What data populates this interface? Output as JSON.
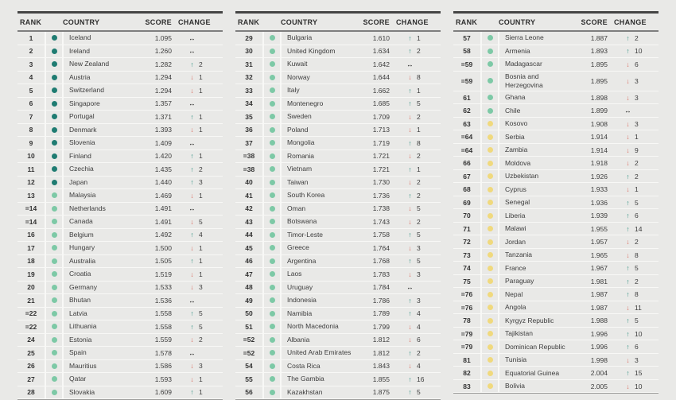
{
  "colors": {
    "dot_dark": "#1f7c72",
    "dot_green": "#7dc9a6",
    "dot_yellow": "#f0d97d",
    "arrow_up": "#2e8f80",
    "arrow_down": "#d96a5e",
    "arrow_same": "#1c1c1c"
  },
  "icons": {
    "up": "↑",
    "down": "↓",
    "same": "↔"
  },
  "chart_data": {
    "type": "table",
    "columns": [
      "RANK",
      "COUNTRY",
      "SCORE",
      "CHANGE"
    ],
    "tables": [
      {
        "rows": [
          {
            "rank": "1",
            "country": "Iceland",
            "score": "1.095",
            "change_dir": "same",
            "change_value": "",
            "tier": "dark"
          },
          {
            "rank": "2",
            "country": "Ireland",
            "score": "1.260",
            "change_dir": "same",
            "change_value": "",
            "tier": "dark"
          },
          {
            "rank": "3",
            "country": "New Zealand",
            "score": "1.282",
            "change_dir": "up",
            "change_value": "2",
            "tier": "dark"
          },
          {
            "rank": "4",
            "country": "Austria",
            "score": "1.294",
            "change_dir": "down",
            "change_value": "1",
            "tier": "dark"
          },
          {
            "rank": "5",
            "country": "Switzerland",
            "score": "1.294",
            "change_dir": "down",
            "change_value": "1",
            "tier": "dark"
          },
          {
            "rank": "6",
            "country": "Singapore",
            "score": "1.357",
            "change_dir": "same",
            "change_value": "",
            "tier": "dark"
          },
          {
            "rank": "7",
            "country": "Portugal",
            "score": "1.371",
            "change_dir": "up",
            "change_value": "1",
            "tier": "dark"
          },
          {
            "rank": "8",
            "country": "Denmark",
            "score": "1.393",
            "change_dir": "down",
            "change_value": "1",
            "tier": "dark"
          },
          {
            "rank": "9",
            "country": "Slovenia",
            "score": "1.409",
            "change_dir": "same",
            "change_value": "",
            "tier": "dark"
          },
          {
            "rank": "10",
            "country": "Finland",
            "score": "1.420",
            "change_dir": "up",
            "change_value": "1",
            "tier": "dark"
          },
          {
            "rank": "11",
            "country": "Czechia",
            "score": "1.435",
            "change_dir": "up",
            "change_value": "2",
            "tier": "dark"
          },
          {
            "rank": "12",
            "country": "Japan",
            "score": "1.440",
            "change_dir": "up",
            "change_value": "3",
            "tier": "dark"
          },
          {
            "rank": "13",
            "country": "Malaysia",
            "score": "1.469",
            "change_dir": "down",
            "change_value": "1",
            "tier": "green"
          },
          {
            "rank": "=14",
            "country": "Netherlands",
            "score": "1.491",
            "change_dir": "same",
            "change_value": "",
            "tier": "green"
          },
          {
            "rank": "=14",
            "country": "Canada",
            "score": "1.491",
            "change_dir": "down",
            "change_value": "5",
            "tier": "green"
          },
          {
            "rank": "16",
            "country": "Belgium",
            "score": "1.492",
            "change_dir": "up",
            "change_value": "4",
            "tier": "green"
          },
          {
            "rank": "17",
            "country": "Hungary",
            "score": "1.500",
            "change_dir": "down",
            "change_value": "1",
            "tier": "green"
          },
          {
            "rank": "18",
            "country": "Australia",
            "score": "1.505",
            "change_dir": "up",
            "change_value": "1",
            "tier": "green"
          },
          {
            "rank": "19",
            "country": "Croatia",
            "score": "1.519",
            "change_dir": "down",
            "change_value": "1",
            "tier": "green"
          },
          {
            "rank": "20",
            "country": "Germany",
            "score": "1.533",
            "change_dir": "down",
            "change_value": "3",
            "tier": "green"
          },
          {
            "rank": "21",
            "country": "Bhutan",
            "score": "1.536",
            "change_dir": "same",
            "change_value": "",
            "tier": "green"
          },
          {
            "rank": "=22",
            "country": "Latvia",
            "score": "1.558",
            "change_dir": "up",
            "change_value": "5",
            "tier": "green"
          },
          {
            "rank": "=22",
            "country": "Lithuania",
            "score": "1.558",
            "change_dir": "up",
            "change_value": "5",
            "tier": "green"
          },
          {
            "rank": "24",
            "country": "Estonia",
            "score": "1.559",
            "change_dir": "down",
            "change_value": "2",
            "tier": "green"
          },
          {
            "rank": "25",
            "country": "Spain",
            "score": "1.578",
            "change_dir": "same",
            "change_value": "",
            "tier": "green"
          },
          {
            "rank": "26",
            "country": "Mauritius",
            "score": "1.586",
            "change_dir": "down",
            "change_value": "3",
            "tier": "green"
          },
          {
            "rank": "27",
            "country": "Qatar",
            "score": "1.593",
            "change_dir": "down",
            "change_value": "1",
            "tier": "green"
          },
          {
            "rank": "28",
            "country": "Slovakia",
            "score": "1.609",
            "change_dir": "up",
            "change_value": "1",
            "tier": "green"
          }
        ]
      },
      {
        "rows": [
          {
            "rank": "29",
            "country": "Bulgaria",
            "score": "1.610",
            "change_dir": "up",
            "change_value": "1",
            "tier": "green"
          },
          {
            "rank": "30",
            "country": "United Kingdom",
            "score": "1.634",
            "change_dir": "up",
            "change_value": "2",
            "tier": "green"
          },
          {
            "rank": "31",
            "country": "Kuwait",
            "score": "1.642",
            "change_dir": "same",
            "change_value": "",
            "tier": "green"
          },
          {
            "rank": "32",
            "country": "Norway",
            "score": "1.644",
            "change_dir": "down",
            "change_value": "8",
            "tier": "green"
          },
          {
            "rank": "33",
            "country": "Italy",
            "score": "1.662",
            "change_dir": "up",
            "change_value": "1",
            "tier": "green"
          },
          {
            "rank": "34",
            "country": "Montenegro",
            "score": "1.685",
            "change_dir": "up",
            "change_value": "5",
            "tier": "green"
          },
          {
            "rank": "35",
            "country": "Sweden",
            "score": "1.709",
            "change_dir": "down",
            "change_value": "2",
            "tier": "green"
          },
          {
            "rank": "36",
            "country": "Poland",
            "score": "1.713",
            "change_dir": "down",
            "change_value": "1",
            "tier": "green"
          },
          {
            "rank": "37",
            "country": "Mongolia",
            "score": "1.719",
            "change_dir": "up",
            "change_value": "8",
            "tier": "green"
          },
          {
            "rank": "=38",
            "country": "Romania",
            "score": "1.721",
            "change_dir": "down",
            "change_value": "2",
            "tier": "green"
          },
          {
            "rank": "=38",
            "country": "Vietnam",
            "score": "1.721",
            "change_dir": "up",
            "change_value": "1",
            "tier": "green"
          },
          {
            "rank": "40",
            "country": "Taiwan",
            "score": "1.730",
            "change_dir": "down",
            "change_value": "2",
            "tier": "green"
          },
          {
            "rank": "41",
            "country": "South Korea",
            "score": "1.736",
            "change_dir": "up",
            "change_value": "2",
            "tier": "green"
          },
          {
            "rank": "42",
            "country": "Oman",
            "score": "1.738",
            "change_dir": "down",
            "change_value": "5",
            "tier": "green"
          },
          {
            "rank": "43",
            "country": "Botswana",
            "score": "1.743",
            "change_dir": "down",
            "change_value": "2",
            "tier": "green"
          },
          {
            "rank": "44",
            "country": "Timor-Leste",
            "score": "1.758",
            "change_dir": "up",
            "change_value": "5",
            "tier": "green"
          },
          {
            "rank": "45",
            "country": "Greece",
            "score": "1.764",
            "change_dir": "down",
            "change_value": "3",
            "tier": "green"
          },
          {
            "rank": "46",
            "country": "Argentina",
            "score": "1.768",
            "change_dir": "up",
            "change_value": "5",
            "tier": "green"
          },
          {
            "rank": "47",
            "country": "Laos",
            "score": "1.783",
            "change_dir": "down",
            "change_value": "3",
            "tier": "green"
          },
          {
            "rank": "48",
            "country": "Uruguay",
            "score": "1.784",
            "change_dir": "same",
            "change_value": "",
            "tier": "green"
          },
          {
            "rank": "49",
            "country": "Indonesia",
            "score": "1.786",
            "change_dir": "up",
            "change_value": "3",
            "tier": "green"
          },
          {
            "rank": "50",
            "country": "Namibia",
            "score": "1.789",
            "change_dir": "up",
            "change_value": "4",
            "tier": "green"
          },
          {
            "rank": "51",
            "country": "North Macedonia",
            "score": "1.799",
            "change_dir": "down",
            "change_value": "4",
            "tier": "green"
          },
          {
            "rank": "=52",
            "country": "Albania",
            "score": "1.812",
            "change_dir": "down",
            "change_value": "6",
            "tier": "green"
          },
          {
            "rank": "=52",
            "country": "United Arab Emirates",
            "score": "1.812",
            "change_dir": "up",
            "change_value": "2",
            "tier": "green"
          },
          {
            "rank": "54",
            "country": "Costa Rica",
            "score": "1.843",
            "change_dir": "down",
            "change_value": "4",
            "tier": "green"
          },
          {
            "rank": "55",
            "country": "The Gambia",
            "score": "1.855",
            "change_dir": "up",
            "change_value": "16",
            "tier": "green"
          },
          {
            "rank": "56",
            "country": "Kazakhstan",
            "score": "1.875",
            "change_dir": "up",
            "change_value": "5",
            "tier": "green"
          }
        ]
      },
      {
        "rows": [
          {
            "rank": "57",
            "country": "Sierra Leone",
            "score": "1.887",
            "change_dir": "up",
            "change_value": "2",
            "tier": "green"
          },
          {
            "rank": "58",
            "country": "Armenia",
            "score": "1.893",
            "change_dir": "up",
            "change_value": "10",
            "tier": "green"
          },
          {
            "rank": "=59",
            "country": "Madagascar",
            "score": "1.895",
            "change_dir": "down",
            "change_value": "6",
            "tier": "green"
          },
          {
            "rank": "=59",
            "country": "Bosnia and\nHerzegovina",
            "score": "1.895",
            "change_dir": "down",
            "change_value": "3",
            "tier": "green"
          },
          {
            "rank": "61",
            "country": "Ghana",
            "score": "1.898",
            "change_dir": "down",
            "change_value": "3",
            "tier": "green"
          },
          {
            "rank": "62",
            "country": "Chile",
            "score": "1.899",
            "change_dir": "same",
            "change_value": "",
            "tier": "green"
          },
          {
            "rank": "63",
            "country": "Kosovo",
            "score": "1.908",
            "change_dir": "down",
            "change_value": "3",
            "tier": "yellow"
          },
          {
            "rank": "=64",
            "country": "Serbia",
            "score": "1.914",
            "change_dir": "down",
            "change_value": "1",
            "tier": "yellow"
          },
          {
            "rank": "=64",
            "country": "Zambia",
            "score": "1.914",
            "change_dir": "down",
            "change_value": "9",
            "tier": "yellow"
          },
          {
            "rank": "66",
            "country": "Moldova",
            "score": "1.918",
            "change_dir": "down",
            "change_value": "2",
            "tier": "yellow"
          },
          {
            "rank": "67",
            "country": "Uzbekistan",
            "score": "1.926",
            "change_dir": "up",
            "change_value": "2",
            "tier": "yellow"
          },
          {
            "rank": "68",
            "country": "Cyprus",
            "score": "1.933",
            "change_dir": "down",
            "change_value": "1",
            "tier": "yellow"
          },
          {
            "rank": "69",
            "country": "Senegal",
            "score": "1.936",
            "change_dir": "up",
            "change_value": "5",
            "tier": "yellow"
          },
          {
            "rank": "70",
            "country": "Liberia",
            "score": "1.939",
            "change_dir": "up",
            "change_value": "6",
            "tier": "yellow"
          },
          {
            "rank": "71",
            "country": "Malawi",
            "score": "1.955",
            "change_dir": "up",
            "change_value": "14",
            "tier": "yellow"
          },
          {
            "rank": "72",
            "country": "Jordan",
            "score": "1.957",
            "change_dir": "down",
            "change_value": "2",
            "tier": "yellow"
          },
          {
            "rank": "73",
            "country": "Tanzania",
            "score": "1.965",
            "change_dir": "down",
            "change_value": "8",
            "tier": "yellow"
          },
          {
            "rank": "74",
            "country": "France",
            "score": "1.967",
            "change_dir": "up",
            "change_value": "5",
            "tier": "yellow"
          },
          {
            "rank": "75",
            "country": "Paraguay",
            "score": "1.981",
            "change_dir": "up",
            "change_value": "2",
            "tier": "yellow"
          },
          {
            "rank": "=76",
            "country": "Nepal",
            "score": "1.987",
            "change_dir": "up",
            "change_value": "8",
            "tier": "yellow"
          },
          {
            "rank": "=76",
            "country": "Angola",
            "score": "1.987",
            "change_dir": "down",
            "change_value": "11",
            "tier": "yellow"
          },
          {
            "rank": "78",
            "country": "Kyrgyz Republic",
            "score": "1.988",
            "change_dir": "up",
            "change_value": "5",
            "tier": "yellow"
          },
          {
            "rank": "=79",
            "country": "Tajikistan",
            "score": "1.996",
            "change_dir": "up",
            "change_value": "10",
            "tier": "yellow"
          },
          {
            "rank": "=79",
            "country": "Dominican Republic",
            "score": "1.996",
            "change_dir": "up",
            "change_value": "6",
            "tier": "yellow"
          },
          {
            "rank": "81",
            "country": "Tunisia",
            "score": "1.998",
            "change_dir": "down",
            "change_value": "3",
            "tier": "yellow"
          },
          {
            "rank": "82",
            "country": "Equatorial Guinea",
            "score": "2.004",
            "change_dir": "up",
            "change_value": "15",
            "tier": "yellow"
          },
          {
            "rank": "83",
            "country": "Bolivia",
            "score": "2.005",
            "change_dir": "down",
            "change_value": "10",
            "tier": "yellow"
          }
        ]
      }
    ]
  }
}
